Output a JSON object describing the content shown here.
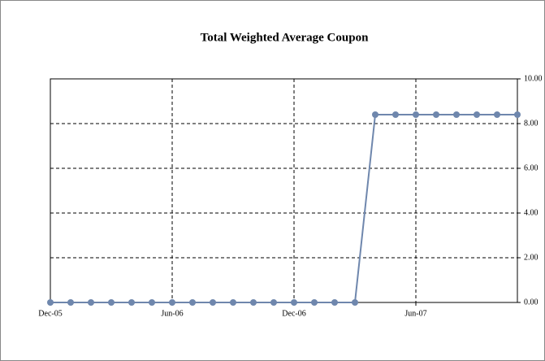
{
  "chart_data": {
    "type": "line",
    "title": "Total Weighted Average Coupon",
    "categories": [
      "Dec-05",
      null,
      null,
      null,
      null,
      null,
      "Jun-06",
      null,
      null,
      null,
      null,
      null,
      "Dec-06",
      null,
      null,
      null,
      null,
      null,
      "Jun-07",
      null,
      null,
      null,
      null,
      null
    ],
    "series": [
      {
        "name": "Total Weighted Average Coupon",
        "color": "#6f87ad",
        "values": [
          0,
          0,
          0,
          0,
          0,
          0,
          0,
          0,
          0,
          0,
          0,
          0,
          0,
          0,
          0,
          0,
          8.4,
          8.4,
          8.4,
          8.4,
          8.4,
          8.4,
          8.4,
          8.4
        ]
      }
    ],
    "ylim": [
      0,
      10
    ],
    "yticks": [
      {
        "value": 0,
        "label": "0.00"
      },
      {
        "value": 2,
        "label": "2.00"
      },
      {
        "value": 4,
        "label": "4.00"
      },
      {
        "value": 6,
        "label": "6.00"
      },
      {
        "value": 8,
        "label": "8.00"
      },
      {
        "value": 10,
        "label": "10.00"
      }
    ],
    "yaxis_side": "right",
    "grid": true,
    "legend": false
  }
}
